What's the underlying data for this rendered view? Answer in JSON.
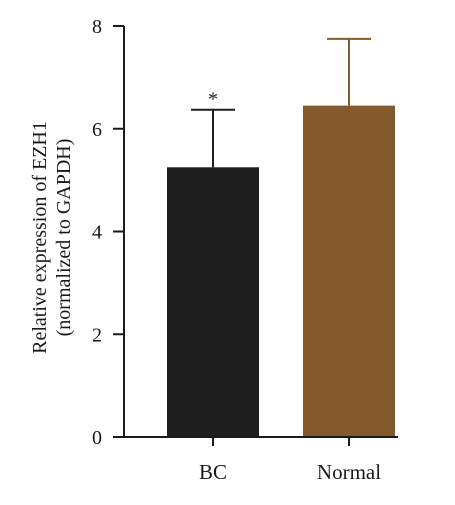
{
  "chart_data": {
    "type": "bar",
    "title": "",
    "ylabel_lines": [
      "Relative expression of EZH1",
      "(normalized to GAPDH)"
    ],
    "xlabel": "",
    "ylim": [
      0,
      8
    ],
    "yticks": [
      0,
      2,
      4,
      6,
      8
    ],
    "ytick_labels": [
      "0",
      "2",
      "4",
      "6",
      "8"
    ],
    "grid": false,
    "legend": "none",
    "categories": [
      "BC",
      "Normal"
    ],
    "values": [
      5.25,
      6.45
    ],
    "error_upper": [
      1.12,
      1.3
    ],
    "significance": [
      "*",
      ""
    ],
    "colors": [
      "#1e1e1e",
      "#845a2c"
    ]
  }
}
